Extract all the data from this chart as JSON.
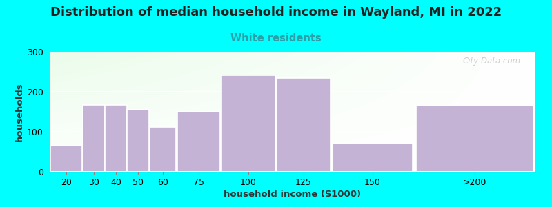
{
  "title": "Distribution of median household income in Wayland, MI in 2022",
  "subtitle": "White residents",
  "xlabel": "household income ($1000)",
  "ylabel": "households",
  "background_color": "#00FFFF",
  "bar_color": "#c5b3d5",
  "bar_edge_color": "#ffffff",
  "title_fontsize": 13,
  "subtitle_fontsize": 10.5,
  "subtitle_color": "#2aa0a8",
  "axis_label_fontsize": 9.5,
  "tick_fontsize": 9,
  "categories": [
    "20",
    "30",
    "40",
    "50",
    "60",
    "75",
    "100",
    "125",
    "150",
    ">200"
  ],
  "bin_edges": [
    10,
    25,
    35,
    45,
    55,
    67.5,
    87.5,
    112.5,
    137.5,
    175,
    230
  ],
  "values": [
    65,
    168,
    168,
    155,
    112,
    150,
    242,
    235,
    70,
    165
  ],
  "ylim": [
    0,
    300
  ],
  "yticks": [
    0,
    100,
    200,
    300
  ],
  "watermark": "City-Data.com"
}
